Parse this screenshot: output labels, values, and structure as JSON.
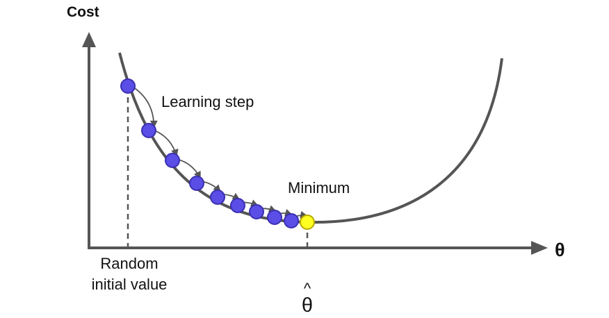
{
  "diagram": {
    "y_axis_label": "Cost",
    "x_axis_label": "θ",
    "learning_step_label": "Learning step",
    "minimum_label": "Minimum",
    "random_init_label": [
      "Random",
      "initial value"
    ],
    "theta_hat_label": {
      "hat": "^",
      "symbol": "θ"
    },
    "step_count": 9
  },
  "colors": {
    "curve": "#555555",
    "axes": "#555555",
    "step_point_fill": "#5b4ee6",
    "step_point_stroke": "#3a2fb0",
    "minimum_point_fill": "#ffff22",
    "minimum_point_stroke": "#b8a800",
    "step_arrow": "#555555",
    "text": "#111111"
  }
}
